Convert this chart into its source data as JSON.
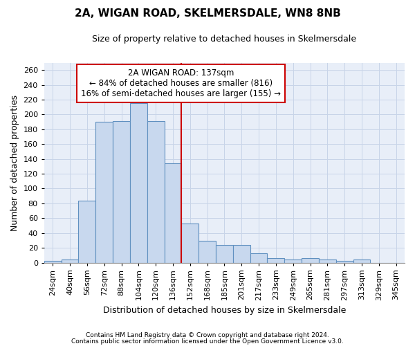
{
  "title": "2A, WIGAN ROAD, SKELMERSDALE, WN8 8NB",
  "subtitle": "Size of property relative to detached houses in Skelmersdale",
  "xlabel": "Distribution of detached houses by size in Skelmersdale",
  "ylabel": "Number of detached properties",
  "footnote1": "Contains HM Land Registry data © Crown copyright and database right 2024.",
  "footnote2": "Contains public sector information licensed under the Open Government Licence v3.0.",
  "annotation_title": "2A WIGAN ROAD: 137sqm",
  "annotation_line1": "← 84% of detached houses are smaller (816)",
  "annotation_line2": "16% of semi-detached houses are larger (155) →",
  "bar_color": "#c8d8ee",
  "bar_edge_color": "#6090c0",
  "vline_color": "#cc0000",
  "grid_color": "#c8d4e8",
  "bg_color": "#e8eef8",
  "categories": [
    "24sqm",
    "40sqm",
    "56sqm",
    "72sqm",
    "88sqm",
    "104sqm",
    "120sqm",
    "136sqm",
    "152sqm",
    "168sqm",
    "185sqm",
    "201sqm",
    "217sqm",
    "233sqm",
    "249sqm",
    "265sqm",
    "281sqm",
    "297sqm",
    "313sqm",
    "329sqm",
    "345sqm"
  ],
  "values": [
    2,
    4,
    84,
    190,
    191,
    215,
    191,
    134,
    53,
    29,
    24,
    24,
    13,
    6,
    4,
    6,
    4,
    2,
    4,
    0,
    0
  ],
  "ylim": [
    0,
    270
  ],
  "yticks": [
    0,
    20,
    40,
    60,
    80,
    100,
    120,
    140,
    160,
    180,
    200,
    220,
    240,
    260
  ],
  "vline_bin_index": 7,
  "title_fontsize": 11,
  "subtitle_fontsize": 9,
  "tick_fontsize": 8,
  "ylabel_fontsize": 9,
  "xlabel_fontsize": 9
}
